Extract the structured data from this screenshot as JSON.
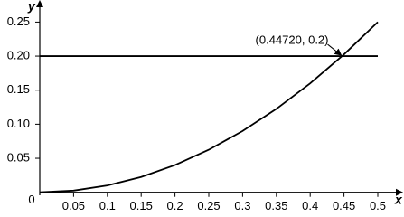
{
  "chart_data": {
    "type": "line",
    "x_label": "x",
    "y_label": "y",
    "x": [
      0,
      0.05,
      0.1,
      0.15,
      0.2,
      0.25,
      0.3,
      0.35,
      0.4,
      0.45,
      0.5
    ],
    "series": [
      {
        "color": "#000000",
        "values": [
          0,
          0.0025,
          0.01,
          0.0225,
          0.04,
          0.0625,
          0.09,
          0.1225,
          0.16,
          0.2025,
          0.25
        ]
      },
      {
        "color": "#000000",
        "x": [
          0,
          0.5
        ],
        "values": [
          0.2,
          0.2
        ]
      }
    ],
    "annotation": {
      "text": "(0.44720, 0.2)",
      "x": 0.4472,
      "y": 0.2
    },
    "xlim": [
      0,
      0.5
    ],
    "ylim": [
      0,
      0.25
    ],
    "xticks": [
      0,
      0.05,
      {
        "value": 0.1,
        "label": "0.1"
      },
      0.15,
      0.2,
      0.25,
      0.3,
      0.35,
      0.4,
      0.45,
      0.5
    ],
    "yticks": [
      0.05,
      {
        "value": 0.1,
        "label": "0.10"
      },
      0.15,
      {
        "value": 0.2,
        "label": "0.20"
      },
      0.25
    ]
  }
}
